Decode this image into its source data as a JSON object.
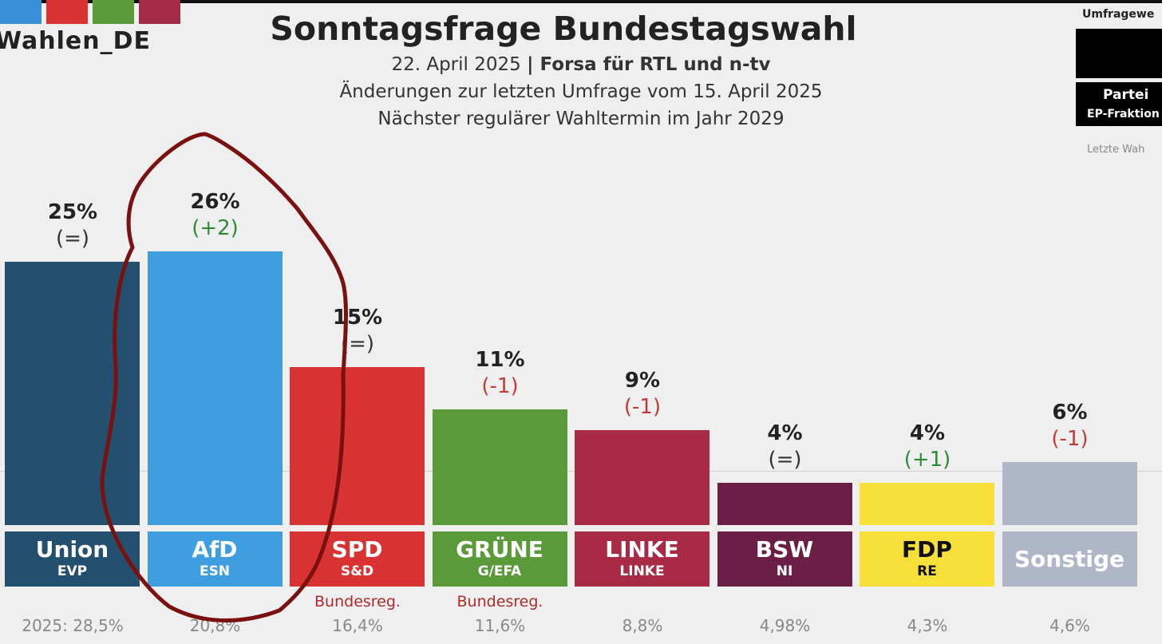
{
  "logo": {
    "text": "Wahlen_DE",
    "colors": [
      "#3a8fd9",
      "#d83232",
      "#5a9a38",
      "#a32b48"
    ]
  },
  "header": {
    "title": "Sonntagsfrage Bundestagswahl",
    "date": "22. April 2025",
    "source": "Forsa für RTL und n-tv",
    "line2": "Änderungen zur letzten Umfrage vom 15. April 2025",
    "line3": "Nächster regulärer Wahltermin im Jahr 2029"
  },
  "legend": {
    "label": "Umfragewe",
    "party": "Partei",
    "ep": "EP-Fraktion",
    "last": "Letzte Wah"
  },
  "chart_data": {
    "type": "bar",
    "title": "Sonntagsfrage Bundestagswahl",
    "categories": [
      "Union",
      "AfD",
      "SPD",
      "GRÜNE",
      "LINKE",
      "BSW",
      "FDP",
      "Sonstige"
    ],
    "ep_groups": [
      "EVP",
      "ESN",
      "S&D",
      "G/EFA",
      "LINKE",
      "NI",
      "RE",
      ""
    ],
    "values": [
      25,
      26,
      15,
      11,
      9,
      4,
      4,
      6
    ],
    "value_labels": [
      "25%",
      "26%",
      "15%",
      "11%",
      "9%",
      "4%",
      "4%",
      "6%"
    ],
    "changes": [
      "(=)",
      "(+2)",
      "(=)",
      "(-1)",
      "(-1)",
      "(=)",
      "(+1)",
      "(-1)"
    ],
    "government": [
      "",
      "",
      "Bundesreg.",
      "Bundesreg.",
      "",
      "",
      "",
      ""
    ],
    "previous_election": [
      "2025: 28,5%",
      "20,8%",
      "16,4%",
      "11,6%",
      "8,8%",
      "4,98%",
      "4,3%",
      "4,6%"
    ],
    "colors": [
      "#23506e",
      "#3f9ee0",
      "#d83232",
      "#5a9a38",
      "#a82a44",
      "#6b1f46",
      "#f7e03a",
      "#aeb6c8"
    ],
    "label_colors": [
      "#ffffff",
      "#ffffff",
      "#ffffff",
      "#ffffff",
      "#ffffff",
      "#ffffff",
      "#111111",
      "#ffffff"
    ],
    "change_colors": {
      "up": "#2f8a3a",
      "down": "#c23a3a",
      "same": "#333333"
    },
    "ylim": [
      0,
      26
    ],
    "annotation_color": "#7a1010"
  }
}
